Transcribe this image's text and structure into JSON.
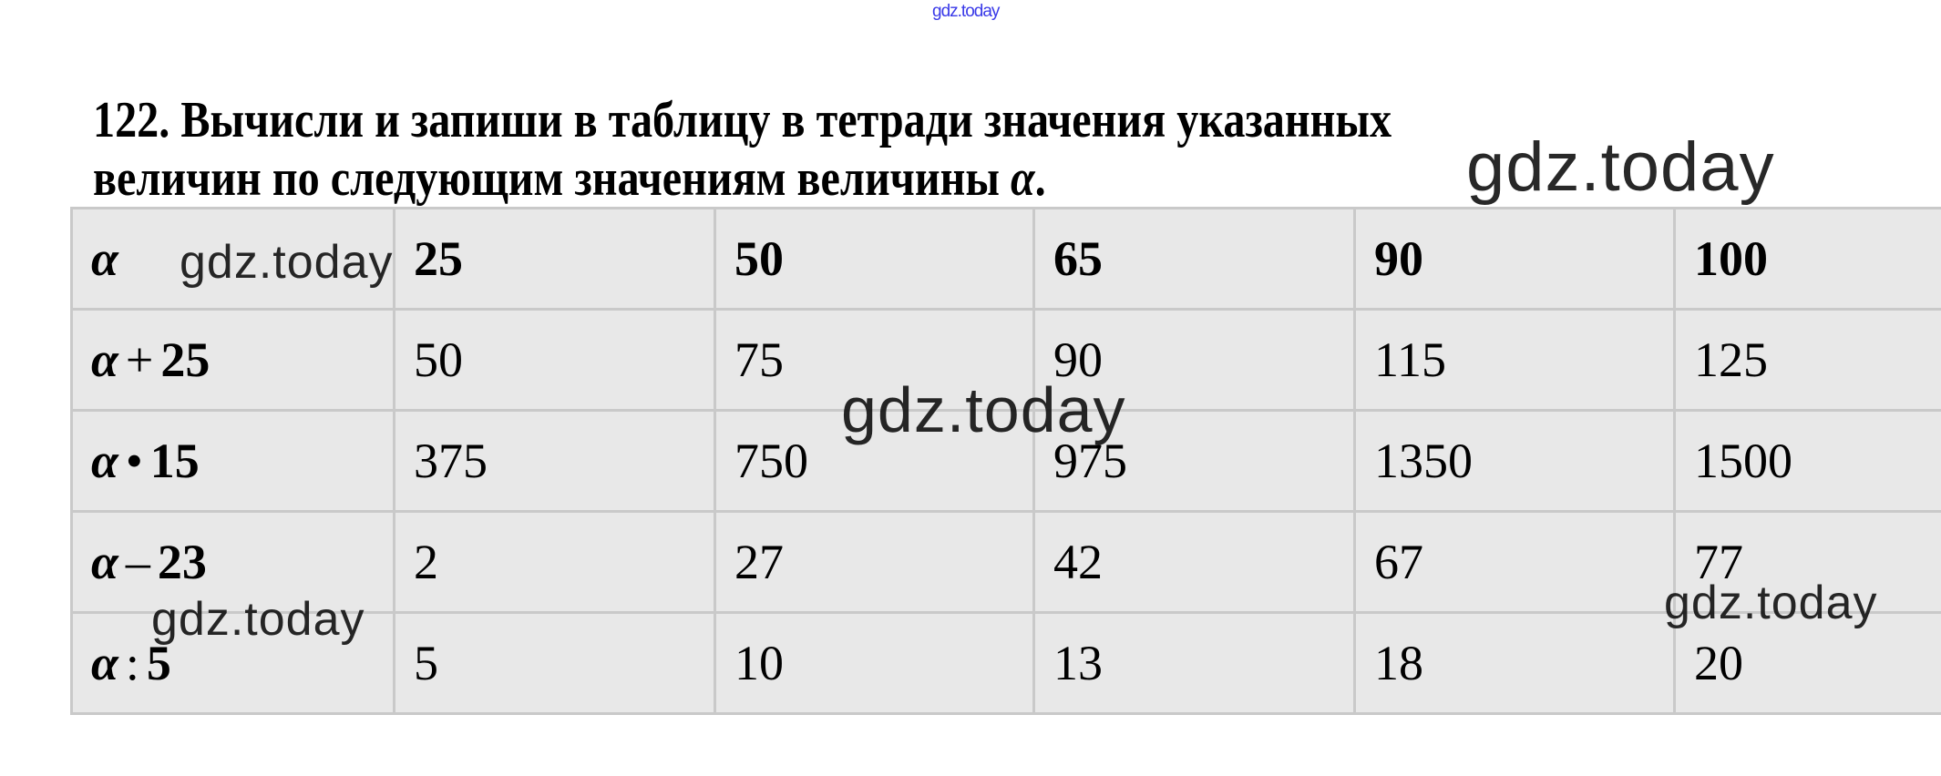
{
  "watermark_top": "gdz.today",
  "title": {
    "line1": "122. Вычисли и запиши в таблицу в тетради значения указанных",
    "line2_prefix": "величин по следующим значениям величины ",
    "line2_var": "α",
    "line2_suffix": "."
  },
  "table": {
    "rows": [
      {
        "label": {
          "var": "α",
          "op": "",
          "num": ""
        },
        "values": [
          "25",
          "50",
          "65",
          "90",
          "100"
        ]
      },
      {
        "label": {
          "var": "α",
          "op": "+",
          "num": "25"
        },
        "values": [
          "50",
          "75",
          "90",
          "115",
          "125"
        ]
      },
      {
        "label": {
          "var": "α",
          "op": "•",
          "num": "15"
        },
        "values": [
          "375",
          "750",
          "975",
          "1350",
          "1500"
        ]
      },
      {
        "label": {
          "var": "α",
          "op": "–",
          "num": "23"
        },
        "values": [
          "2",
          "27",
          "42",
          "67",
          "77"
        ]
      },
      {
        "label": {
          "var": "α",
          "op": ":",
          "num": "5"
        },
        "values": [
          "5",
          "10",
          "13",
          "18",
          "20"
        ]
      }
    ]
  },
  "watermarks": [
    "gdz.today",
    "gdz.today",
    "gdz.today",
    "gdz.today",
    "gdz.today"
  ],
  "colors": {
    "cell_bg": "#e8e8e8",
    "border": "#c9c9c9",
    "watermark_top": "#3a3ae8"
  }
}
